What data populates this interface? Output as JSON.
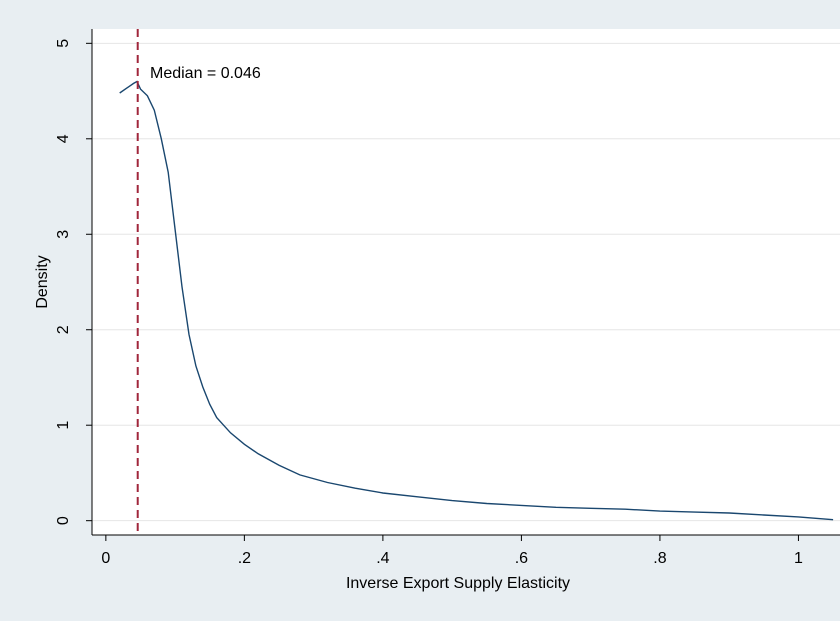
{
  "chart_data": {
    "type": "line",
    "title": "",
    "xlabel": "Inverse Export Supply Elasticity",
    "ylabel": "Density",
    "xlim": [
      -0.02,
      1.06
    ],
    "ylim": [
      -0.15,
      5.15
    ],
    "xticks": [
      0,
      0.2,
      0.4,
      0.6,
      0.8,
      1
    ],
    "xtick_labels": [
      "0",
      ".2",
      ".4",
      ".6",
      ".8",
      "1"
    ],
    "yticks": [
      0,
      1,
      2,
      3,
      4,
      5
    ],
    "ytick_labels": [
      "0",
      "1",
      "2",
      "3",
      "4",
      "5"
    ],
    "grid": true,
    "legend": "none",
    "series": [
      {
        "color": "#1a476f",
        "x": [
          0.02,
          0.03,
          0.04,
          0.045,
          0.05,
          0.06,
          0.07,
          0.08,
          0.09,
          0.1,
          0.11,
          0.12,
          0.13,
          0.14,
          0.15,
          0.16,
          0.18,
          0.2,
          0.22,
          0.25,
          0.28,
          0.32,
          0.36,
          0.4,
          0.45,
          0.5,
          0.55,
          0.6,
          0.65,
          0.7,
          0.75,
          0.8,
          0.85,
          0.9,
          0.95,
          1.0,
          1.05
        ],
        "y": [
          4.48,
          4.53,
          4.58,
          4.6,
          4.52,
          4.45,
          4.3,
          4.0,
          3.65,
          3.05,
          2.45,
          1.95,
          1.62,
          1.4,
          1.22,
          1.08,
          0.92,
          0.8,
          0.7,
          0.58,
          0.48,
          0.4,
          0.34,
          0.29,
          0.25,
          0.21,
          0.18,
          0.16,
          0.14,
          0.13,
          0.12,
          0.1,
          0.09,
          0.08,
          0.06,
          0.04,
          0.01
        ]
      }
    ],
    "reference_line": {
      "x": 0.046,
      "color": "#a0263b",
      "style": "dashed"
    },
    "annotation": "Median = 0.046"
  }
}
